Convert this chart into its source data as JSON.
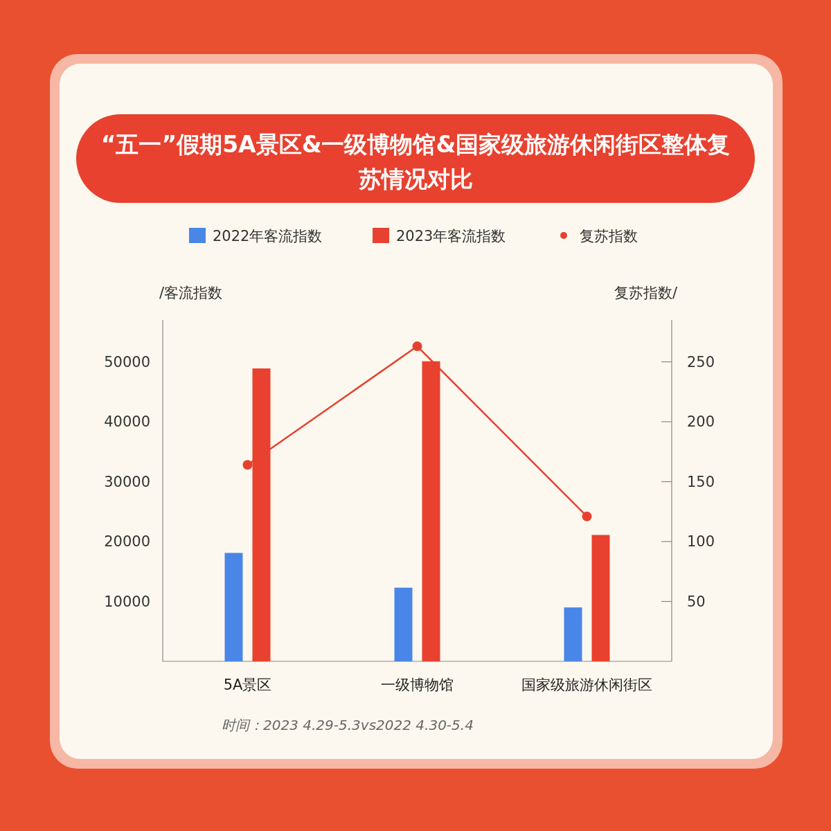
{
  "chart_data": {
    "type": "bar",
    "title": "“五一”假期5A景区&一级博物馆&国家级旅游休闲街区整体复苏情况对比",
    "categories": [
      "5A景区",
      "一级博物馆",
      "国家级旅游休闲街区"
    ],
    "series": [
      {
        "name": "2022年客流指数",
        "color": "#4a86e8",
        "values": [
          18100,
          12300,
          9000
        ]
      },
      {
        "name": "2023年客流指数",
        "color": "#e8412f",
        "values": [
          48900,
          50100,
          21100
        ]
      },
      {
        "name": "复苏指数",
        "color": "#e5412f",
        "type": "line",
        "axis": "y2",
        "marker": "circle",
        "values": [
          164,
          263,
          121
        ]
      }
    ],
    "ylabel": "/客流指数",
    "y2label": "复苏指数/",
    "ylim": [
      0,
      57000
    ],
    "yticks": [
      10000,
      20000,
      30000,
      40000,
      50000
    ],
    "y2lim": [
      0,
      285
    ],
    "y2ticks": [
      50,
      100,
      150,
      200,
      250
    ],
    "legend": "top",
    "annotations": [
      "时间：2023 4.29-5.3vs2022 4.30-5.4"
    ]
  }
}
